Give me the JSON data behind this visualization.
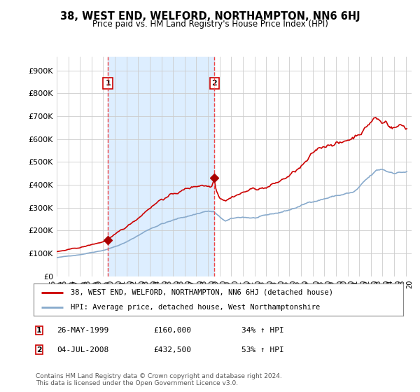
{
  "title": "38, WEST END, WELFORD, NORTHAMPTON, NN6 6HJ",
  "subtitle": "Price paid vs. HM Land Registry's House Price Index (HPI)",
  "ylabel_ticks": [
    "£0",
    "£100K",
    "£200K",
    "£300K",
    "£400K",
    "£500K",
    "£600K",
    "£700K",
    "£800K",
    "£900K"
  ],
  "ytick_values": [
    0,
    100000,
    200000,
    300000,
    400000,
    500000,
    600000,
    700000,
    800000,
    900000
  ],
  "ylim": [
    0,
    960000
  ],
  "background_color": "#ffffff",
  "plot_bg_color": "#ffffff",
  "grid_color": "#cccccc",
  "sale1_x": 1999.4,
  "sale1_price": 160000,
  "sale2_x": 2008.55,
  "sale2_price": 432500,
  "vline_color": "#ee4444",
  "shade_color": "#ddeeff",
  "red_line_color": "#cc0000",
  "blue_line_color": "#88aacc",
  "marker_color": "#aa0000",
  "legend_entry1": "38, WEST END, WELFORD, NORTHAMPTON, NN6 6HJ (detached house)",
  "legend_entry2": "HPI: Average price, detached house, West Northamptonshire",
  "footer1": "Contains HM Land Registry data © Crown copyright and database right 2024.",
  "footer2": "This data is licensed under the Open Government Licence v3.0.",
  "table_row1": [
    "1",
    "26-MAY-1999",
    "£160,000",
    "34% ↑ HPI"
  ],
  "table_row2": [
    "2",
    "04-JUL-2008",
    "£432,500",
    "53% ↑ HPI"
  ],
  "xlim_left": 1995.0,
  "xlim_right": 2025.5
}
